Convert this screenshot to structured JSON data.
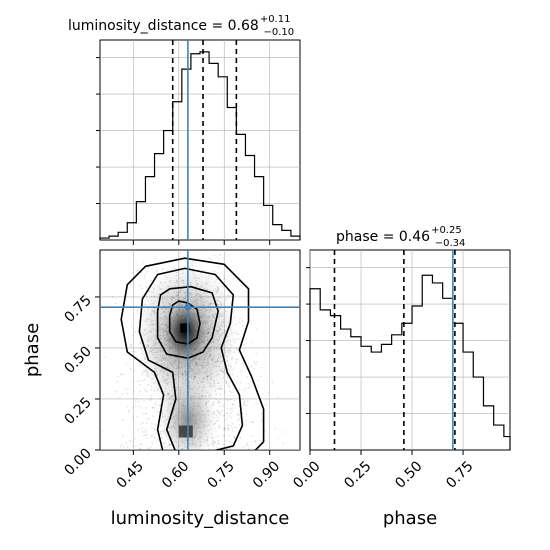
{
  "chart_data": {
    "type": "corner",
    "parameters": [
      "luminosity_distance",
      "phase"
    ],
    "panels": [
      {
        "kind": "histogram",
        "parameter": "luminosity_distance",
        "title": {
          "label": "luminosity_distance = 0.68",
          "sup": "+0.11",
          "sub": "−0.10"
        },
        "median": 0.68,
        "err_plus": 0.11,
        "err_minus": 0.1,
        "quantile_lines": [
          0.58,
          0.68,
          0.79
        ],
        "truth": 0.63,
        "xlim": [
          0.34,
          1.0
        ],
        "ylim": [
          0,
          1.0
        ],
        "bin_edges": [
          0.34,
          0.37,
          0.4,
          0.43,
          0.46,
          0.49,
          0.52,
          0.55,
          0.58,
          0.61,
          0.64,
          0.67,
          0.7,
          0.73,
          0.76,
          0.79,
          0.82,
          0.85,
          0.88,
          0.91,
          0.94,
          0.97,
          1.0
        ],
        "counts": [
          0.01,
          0.02,
          0.04,
          0.09,
          0.2,
          0.33,
          0.45,
          0.57,
          0.72,
          0.89,
          0.97,
          0.98,
          0.92,
          0.85,
          0.69,
          0.55,
          0.44,
          0.33,
          0.18,
          0.08,
          0.05,
          0.02
        ]
      },
      {
        "kind": "histogram",
        "parameter": "phase",
        "title": {
          "label": "phase = 0.46",
          "sup": "+0.25",
          "sub": "−0.34"
        },
        "median": 0.46,
        "err_plus": 0.25,
        "err_minus": 0.34,
        "quantile_lines": [
          0.12,
          0.46,
          0.71
        ],
        "truth": 0.7,
        "xlim": [
          0.0,
          0.98
        ],
        "ylim": [
          0,
          1.0
        ],
        "bin_edges": [
          0.0,
          0.05,
          0.1,
          0.15,
          0.2,
          0.25,
          0.3,
          0.35,
          0.4,
          0.45,
          0.5,
          0.55,
          0.6,
          0.65,
          0.7,
          0.75,
          0.8,
          0.85,
          0.9,
          0.95,
          0.98
        ],
        "counts": [
          0.84,
          0.73,
          0.7,
          0.63,
          0.59,
          0.54,
          0.51,
          0.55,
          0.6,
          0.66,
          0.75,
          0.91,
          0.87,
          0.79,
          0.66,
          0.51,
          0.38,
          0.23,
          0.13,
          0.07
        ]
      },
      {
        "kind": "2d-density",
        "x": "luminosity_distance",
        "y": "phase",
        "xlim": [
          0.34,
          1.0
        ],
        "ylim": [
          0.0,
          0.98
        ],
        "truth": {
          "x": 0.63,
          "y": 0.7
        },
        "density_peak": {
          "x": 0.62,
          "y": 0.58
        },
        "contour_levels": [
          "0.5 sigma",
          "1.0 sigma",
          "1.5 sigma",
          "2.0 sigma"
        ]
      }
    ],
    "xticks": {
      "luminosity_distance": [
        "0.45",
        "0.60",
        "0.75",
        "0.90"
      ],
      "phase": [
        "0.00",
        "0.25",
        "0.50",
        "0.75"
      ]
    },
    "yticks": {
      "phase": [
        "0.00",
        "0.25",
        "0.50",
        "0.75"
      ]
    },
    "xlabel_left": "luminosity_distance",
    "xlabel_right": "phase",
    "ylabel": "phase",
    "grid": true,
    "colors": {
      "hist": "#000000",
      "truth": "#4682b4",
      "grid": "#b0b0b0",
      "quantile": "#000000"
    }
  }
}
